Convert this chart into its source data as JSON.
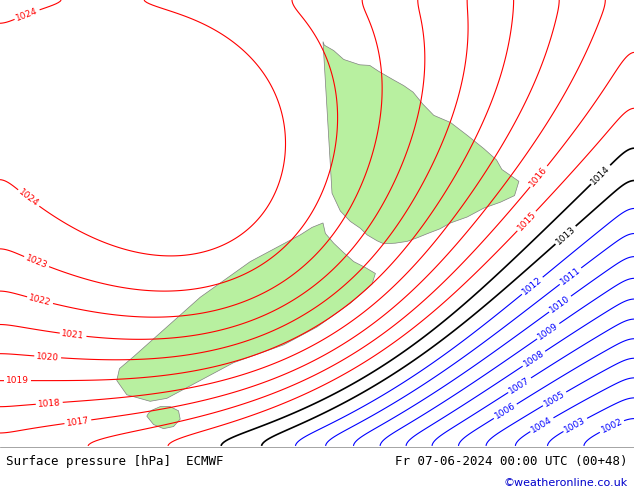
{
  "title_left": "Surface pressure [hPa]  ECMWF",
  "title_right": "Fr 07-06-2024 00:00 UTC (00+48)",
  "credit": "©weatheronline.co.uk",
  "background_color": "#d4d4d4",
  "land_color": "#b8f0a0",
  "figsize": [
    6.34,
    4.9
  ],
  "dpi": 100,
  "credit_color": "#0000cc",
  "xlim": [
    163,
    182
  ],
  "ylim": [
    -48,
    -33
  ],
  "grid_nx": 400,
  "grid_ny": 350
}
